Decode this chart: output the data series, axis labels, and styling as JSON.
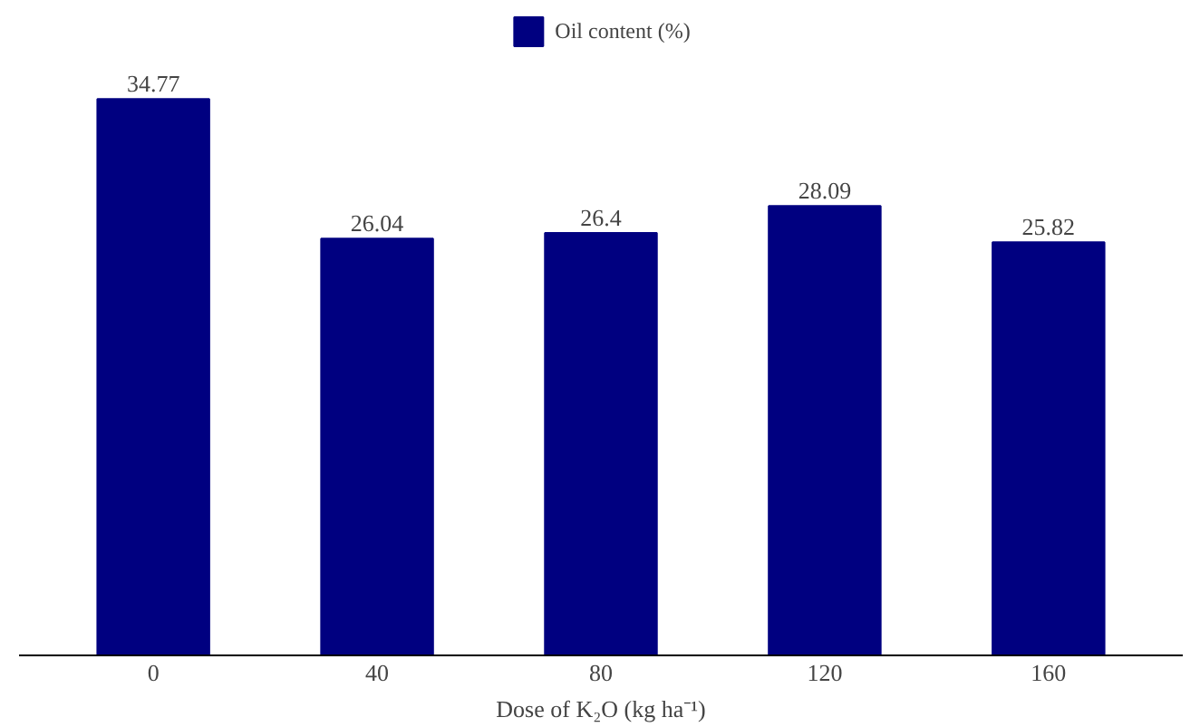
{
  "chart_data": {
    "type": "bar",
    "xlabel": "Dose of K₂O (kg ha⁻¹)",
    "categories": [
      "0",
      "40",
      "80",
      "120",
      "160"
    ],
    "series": [
      {
        "name": "Oil content (%)",
        "color": "#000080",
        "values": [
          34.77,
          26.04,
          26.4,
          28.09,
          25.82
        ]
      }
    ],
    "data_labels": true,
    "legend": "top",
    "grid": false
  }
}
